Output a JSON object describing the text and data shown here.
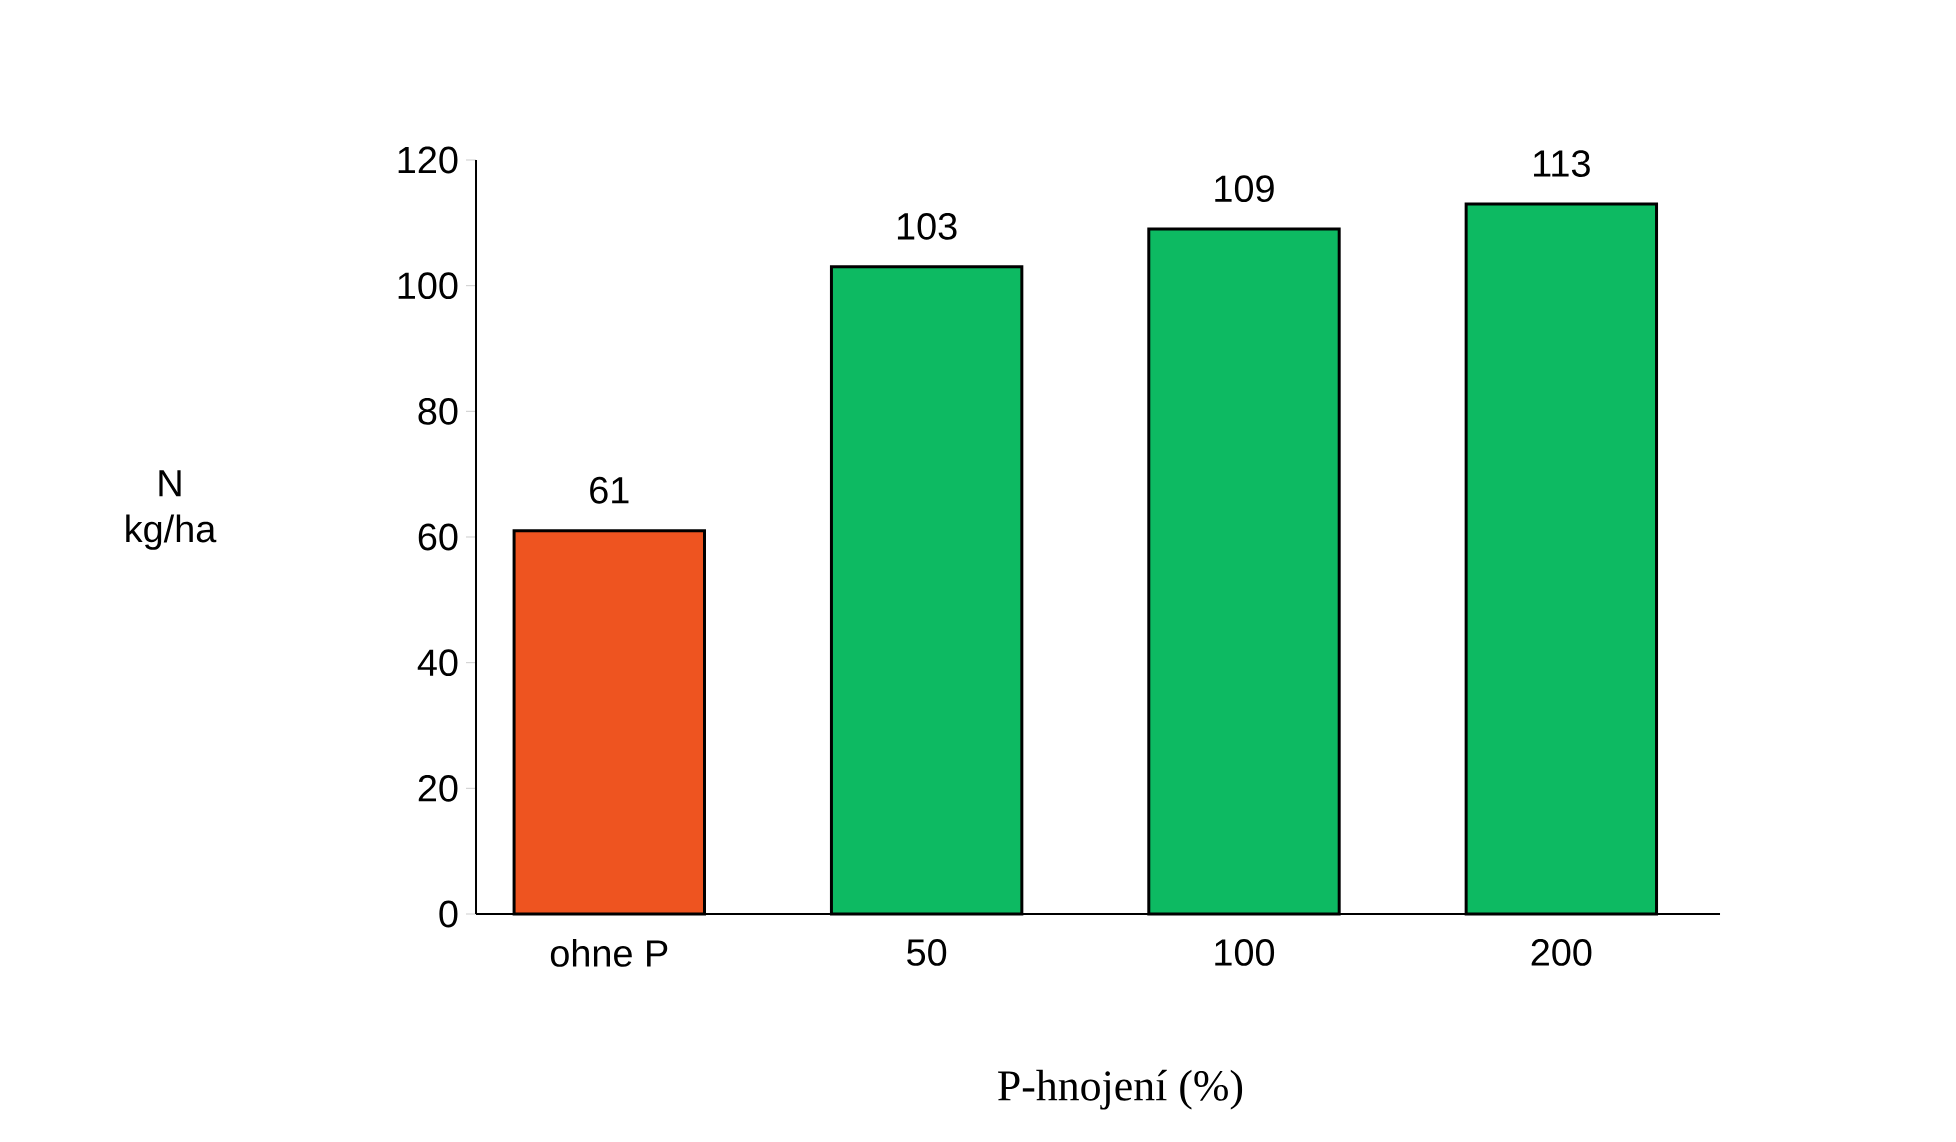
{
  "chart_data": {
    "type": "bar",
    "categories": [
      "ohne P",
      "50",
      "100",
      "200"
    ],
    "values": [
      61,
      103,
      109,
      113
    ],
    "colors": [
      "#ee5420",
      "#0dba62",
      "#0dba62",
      "#0dba62"
    ],
    "ylim": [
      0,
      120
    ],
    "yticks": [
      0,
      20,
      40,
      60,
      80,
      100,
      120
    ],
    "ylabel": "N kg/ha",
    "xlabel": "P-hnojení (%)",
    "data_labels": true,
    "grid": false
  }
}
